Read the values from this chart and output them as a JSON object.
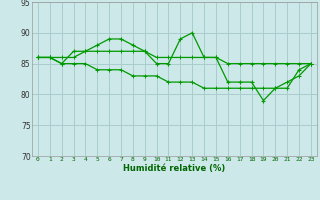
{
  "title": "",
  "xlabel": "Humidité relative (%)",
  "ylabel": "",
  "bg_color": "#cce8e8",
  "grid_color": "#aacccc",
  "line_color": "#009900",
  "xmin": -0.5,
  "xmax": 23.5,
  "ymin": 70,
  "ymax": 95,
  "yticks": [
    70,
    75,
    80,
    85,
    90,
    95
  ],
  "xticks": [
    0,
    1,
    2,
    3,
    4,
    5,
    6,
    7,
    8,
    9,
    10,
    11,
    12,
    13,
    14,
    15,
    16,
    17,
    18,
    19,
    20,
    21,
    22,
    23
  ],
  "line1_x": [
    0,
    1,
    2,
    3,
    4,
    5,
    6,
    7,
    8,
    9,
    10,
    11,
    12,
    13,
    14,
    15,
    16,
    17,
    18,
    19,
    20,
    21,
    22,
    23
  ],
  "line1_y": [
    86,
    86,
    85,
    87,
    87,
    88,
    89,
    89,
    88,
    87,
    85,
    85,
    89,
    90,
    86,
    86,
    82,
    82,
    82,
    79,
    81,
    81,
    84,
    85
  ],
  "line2_x": [
    0,
    1,
    2,
    3,
    4,
    5,
    6,
    7,
    8,
    9,
    10,
    11,
    12,
    13,
    14,
    15,
    16,
    17,
    18,
    19,
    20,
    21,
    22,
    23
  ],
  "line2_y": [
    86,
    86,
    86,
    86,
    87,
    87,
    87,
    87,
    87,
    87,
    86,
    86,
    86,
    86,
    86,
    86,
    85,
    85,
    85,
    85,
    85,
    85,
    85,
    85
  ],
  "line3_x": [
    0,
    1,
    2,
    3,
    4,
    5,
    6,
    7,
    8,
    9,
    10,
    11,
    12,
    13,
    14,
    15,
    16,
    17,
    18,
    19,
    20,
    21,
    22,
    23
  ],
  "line3_y": [
    86,
    86,
    85,
    85,
    85,
    84,
    84,
    84,
    83,
    83,
    83,
    82,
    82,
    82,
    81,
    81,
    81,
    81,
    81,
    81,
    81,
    82,
    83,
    85
  ]
}
